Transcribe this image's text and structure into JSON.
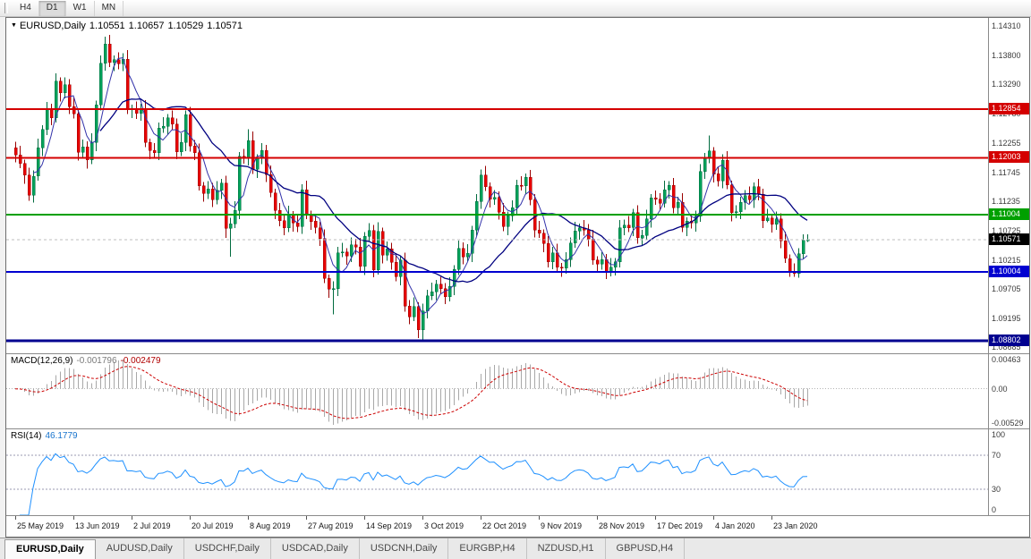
{
  "toolbar": {
    "timeframes": [
      "H4",
      "D1",
      "W1",
      "MN"
    ],
    "active_timeframe": "D1"
  },
  "icons": {
    "dropdown_icon": "▼"
  },
  "tabs": {
    "active_index": 0,
    "items": [
      "EURUSD,Daily",
      "AUDUSD,Daily",
      "USDCHF,Daily",
      "USDCAD,Daily",
      "USDCNH,Daily",
      "EURGBP,H4",
      "NZDUSD,H1",
      "GBPUSD,H4"
    ]
  },
  "chart_data": {
    "type": "candlestick",
    "symbol": "EURUSD",
    "period": "Daily",
    "header": {
      "symbol_period": "EURUSD,Daily",
      "open": "1.10551",
      "high": "1.10657",
      "low": "1.10529",
      "close": "1.10571"
    },
    "ylim": [
      1.0858,
      1.1445
    ],
    "y_ticks": [
      "1.14310",
      "1.13800",
      "1.13290",
      "1.12780",
      "1.12255",
      "1.11745",
      "1.11235",
      "1.10725",
      "1.10215",
      "1.09705",
      "1.09195",
      "1.08685"
    ],
    "x_labels": [
      "25 May 2019",
      "13 Jun 2019",
      "2 Jul 2019",
      "20 Jul 2019",
      "8 Aug 2019",
      "27 Aug 2019",
      "14 Sep 2019",
      "3 Oct 2019",
      "22 Oct 2019",
      "9 Nov 2019",
      "28 Nov 2019",
      "17 Dec 2019",
      "4 Jan 2020",
      "23 Jan 2020"
    ],
    "levels": [
      {
        "value": 1.12854,
        "label": "1.12854",
        "color": "#d40000",
        "width": 2
      },
      {
        "value": 1.12003,
        "label": "1.12003",
        "color": "#d40000",
        "width": 2
      },
      {
        "value": 1.11004,
        "label": "1.11004",
        "color": "#00a000",
        "width": 2
      },
      {
        "value": 1.10004,
        "label": "1.10004",
        "color": "#0000d0",
        "width": 2
      },
      {
        "value": 1.08802,
        "label": "1.08802",
        "color": "#000090",
        "width": 3
      }
    ],
    "current_price": {
      "value": 1.10571,
      "label": "1.10571",
      "color": "#000000"
    },
    "colors": {
      "up_fill": "#00a25a",
      "up_stroke": "#006b3f",
      "down_fill": "#e80000",
      "down_stroke": "#9a0000",
      "ma_fast": "#3333aa",
      "ma_slow": "#000080",
      "bid_line": "#bdbdbd",
      "macd_hist": "#a8a8a8",
      "macd_signal": "#cc0000",
      "rsi_line": "#1e90ff",
      "rsi_level": "#9a9ab0",
      "axis_text": "#3a3a3a"
    },
    "indicators": [
      {
        "name": "MACD",
        "label": "MACD(12,26,9)",
        "main_value": "-0.001796",
        "signal_value": "-0.002479",
        "y_ticks": [
          "0.00463",
          "0.00",
          "-0.00529"
        ],
        "ylim": [
          -0.00529,
          0.00463
        ]
      },
      {
        "name": "RSI",
        "label": "RSI(14)",
        "value": "46.1779",
        "y_ticks": [
          "100",
          "70",
          "30",
          "0"
        ],
        "levels": [
          70,
          30
        ],
        "ylim": [
          0,
          100
        ]
      }
    ],
    "candles": [
      [
        1.1218,
        1.1228,
        1.1192,
        1.1205
      ],
      [
        1.1205,
        1.1221,
        1.1182,
        1.119
      ],
      [
        1.119,
        1.1197,
        1.1155,
        1.117
      ],
      [
        1.117,
        1.1183,
        1.1125,
        1.1135
      ],
      [
        1.1135,
        1.1178,
        1.1122,
        1.1168
      ],
      [
        1.1168,
        1.1234,
        1.116,
        1.1218
      ],
      [
        1.1218,
        1.1257,
        1.1203,
        1.125
      ],
      [
        1.125,
        1.1298,
        1.124,
        1.1285
      ],
      [
        1.1285,
        1.1295,
        1.1257,
        1.127
      ],
      [
        1.127,
        1.1348,
        1.1262,
        1.1334
      ],
      [
        1.1334,
        1.1341,
        1.1299,
        1.1314
      ],
      [
        1.1314,
        1.1341,
        1.1304,
        1.1328
      ],
      [
        1.1328,
        1.1338,
        1.1277,
        1.129
      ],
      [
        1.129,
        1.1306,
        1.1269,
        1.1277
      ],
      [
        1.1277,
        1.1284,
        1.1195,
        1.121
      ],
      [
        1.121,
        1.1232,
        1.12,
        1.1219
      ],
      [
        1.1219,
        1.1229,
        1.1181,
        1.1197
      ],
      [
        1.1197,
        1.1243,
        1.1189,
        1.1227
      ],
      [
        1.1227,
        1.13,
        1.1212,
        1.1293
      ],
      [
        1.1293,
        1.1379,
        1.1283,
        1.1366
      ],
      [
        1.1366,
        1.1412,
        1.1353,
        1.1399
      ],
      [
        1.1399,
        1.1415,
        1.1359,
        1.1367
      ],
      [
        1.1367,
        1.1379,
        1.1352,
        1.1372
      ],
      [
        1.1372,
        1.1385,
        1.1355,
        1.1365
      ],
      [
        1.1365,
        1.1383,
        1.1352,
        1.1373
      ],
      [
        1.1373,
        1.1389,
        1.1277,
        1.1285
      ],
      [
        1.1285,
        1.1293,
        1.127,
        1.1286
      ],
      [
        1.1286,
        1.1299,
        1.1268,
        1.1278
      ],
      [
        1.1278,
        1.1295,
        1.1265,
        1.1285
      ],
      [
        1.1285,
        1.1301,
        1.1219,
        1.1227
      ],
      [
        1.1227,
        1.1234,
        1.1198,
        1.1213
      ],
      [
        1.1213,
        1.1226,
        1.1199,
        1.1209
      ],
      [
        1.1209,
        1.1262,
        1.1196,
        1.1252
      ],
      [
        1.1252,
        1.1271,
        1.1244,
        1.1255
      ],
      [
        1.1255,
        1.1277,
        1.124,
        1.127
      ],
      [
        1.127,
        1.1283,
        1.1249,
        1.1259
      ],
      [
        1.1259,
        1.1269,
        1.1198,
        1.1211
      ],
      [
        1.1211,
        1.1243,
        1.1203,
        1.1227
      ],
      [
        1.1227,
        1.1283,
        1.1212,
        1.1276
      ],
      [
        1.1276,
        1.1289,
        1.1211,
        1.1221
      ],
      [
        1.1221,
        1.1231,
        1.1196,
        1.1209
      ],
      [
        1.1209,
        1.1225,
        1.1143,
        1.1151
      ],
      [
        1.1151,
        1.1158,
        1.1123,
        1.1138
      ],
      [
        1.1138,
        1.1159,
        1.1128,
        1.1146
      ],
      [
        1.1146,
        1.1156,
        1.1114,
        1.1127
      ],
      [
        1.1127,
        1.1159,
        1.1119,
        1.1143
      ],
      [
        1.1143,
        1.1163,
        1.1128,
        1.1156
      ],
      [
        1.1156,
        1.1169,
        1.106,
        1.1077
      ],
      [
        1.1077,
        1.1095,
        1.1027,
        1.1085
      ],
      [
        1.1085,
        1.1124,
        1.1077,
        1.1108
      ],
      [
        1.1108,
        1.121,
        1.1093,
        1.1203
      ],
      [
        1.1203,
        1.1216,
        1.119,
        1.12
      ],
      [
        1.12,
        1.125,
        1.1187,
        1.123
      ],
      [
        1.123,
        1.1246,
        1.1172,
        1.118
      ],
      [
        1.118,
        1.1206,
        1.1165,
        1.1199
      ],
      [
        1.1199,
        1.1226,
        1.1189,
        1.1213
      ],
      [
        1.1213,
        1.1223,
        1.1158,
        1.1171
      ],
      [
        1.1171,
        1.1187,
        1.1131,
        1.1139
      ],
      [
        1.1139,
        1.1146,
        1.1093,
        1.1108
      ],
      [
        1.1108,
        1.1121,
        1.108,
        1.109
      ],
      [
        1.109,
        1.11,
        1.1065,
        1.1078
      ],
      [
        1.1078,
        1.1116,
        1.107,
        1.11
      ],
      [
        1.11,
        1.1107,
        1.1071,
        1.1086
      ],
      [
        1.1086,
        1.1099,
        1.107,
        1.108
      ],
      [
        1.108,
        1.1154,
        1.1067,
        1.1144
      ],
      [
        1.1144,
        1.116,
        1.1093,
        1.1101
      ],
      [
        1.1101,
        1.1108,
        1.1074,
        1.1089
      ],
      [
        1.1089,
        1.1102,
        1.1068,
        1.1078
      ],
      [
        1.1078,
        1.1088,
        1.1046,
        1.1059
      ],
      [
        1.1059,
        1.1075,
        1.0981,
        1.0989
      ],
      [
        1.0989,
        1.0996,
        1.0955,
        1.097
      ],
      [
        1.097,
        1.0984,
        1.0926,
        1.0971
      ],
      [
        1.0971,
        1.1044,
        1.0958,
        1.1034
      ],
      [
        1.1034,
        1.1051,
        1.1026,
        1.1035
      ],
      [
        1.1035,
        1.1042,
        1.1013,
        1.1028
      ],
      [
        1.1028,
        1.1061,
        1.1018,
        1.1048
      ],
      [
        1.1048,
        1.1058,
        1.1031,
        1.1044
      ],
      [
        1.1044,
        1.106,
        1.1002,
        1.101
      ],
      [
        1.101,
        1.107,
        1.0995,
        1.1063
      ],
      [
        1.1063,
        1.1086,
        1.1053,
        1.1073
      ],
      [
        1.1073,
        1.1083,
        1.0991,
        1.1004
      ],
      [
        1.1004,
        1.1087,
        1.0996,
        1.1071
      ],
      [
        1.1071,
        1.1078,
        1.1015,
        1.103
      ],
      [
        1.103,
        1.1054,
        1.102,
        1.1041
      ],
      [
        1.1041,
        1.1051,
        1.1004,
        1.1017
      ],
      [
        1.1017,
        1.1033,
        1.0984,
        1.0992
      ],
      [
        1.0992,
        1.1028,
        1.0977,
        1.1021
      ],
      [
        1.1021,
        1.1034,
        1.0931,
        1.0941
      ],
      [
        1.0941,
        1.0951,
        1.0909,
        1.0922
      ],
      [
        1.0922,
        1.0956,
        1.0914,
        1.094
      ],
      [
        1.094,
        1.0947,
        1.0885,
        1.0899
      ],
      [
        1.0899,
        1.0945,
        1.0879,
        1.0932
      ],
      [
        1.0932,
        1.0969,
        1.0919,
        1.0959
      ],
      [
        1.0959,
        1.0982,
        1.0951,
        1.0966
      ],
      [
        1.0966,
        1.0986,
        1.0951,
        1.0979
      ],
      [
        1.0979,
        1.0992,
        1.0961,
        1.0971
      ],
      [
        1.0971,
        1.0981,
        1.0944,
        1.0957
      ],
      [
        1.0957,
        1.0991,
        1.0949,
        1.0975
      ],
      [
        1.0975,
        1.1012,
        1.096,
        1.1005
      ],
      [
        1.1005,
        1.1055,
        1.0995,
        1.1042
      ],
      [
        1.1042,
        1.1052,
        1.1014,
        1.1027
      ],
      [
        1.1027,
        1.1049,
        1.1019,
        1.1033
      ],
      [
        1.1033,
        1.1081,
        1.1018,
        1.1074
      ],
      [
        1.1074,
        1.1137,
        1.1064,
        1.1124
      ],
      [
        1.1124,
        1.118,
        1.1111,
        1.117
      ],
      [
        1.117,
        1.1186,
        1.1142,
        1.115
      ],
      [
        1.115,
        1.1157,
        1.1113,
        1.1128
      ],
      [
        1.1128,
        1.1144,
        1.1118,
        1.1131
      ],
      [
        1.1131,
        1.1141,
        1.1092,
        1.1105
      ],
      [
        1.1105,
        1.1121,
        1.1072,
        1.108
      ],
      [
        1.108,
        1.1106,
        1.1065,
        1.1099
      ],
      [
        1.1099,
        1.1126,
        1.1089,
        1.1113
      ],
      [
        1.1113,
        1.1162,
        1.11,
        1.1152
      ],
      [
        1.1152,
        1.1168,
        1.1143,
        1.1151
      ],
      [
        1.1151,
        1.1173,
        1.1136,
        1.1166
      ],
      [
        1.1166,
        1.1179,
        1.1117,
        1.1127
      ],
      [
        1.1127,
        1.1137,
        1.1061,
        1.1074
      ],
      [
        1.1074,
        1.109,
        1.106,
        1.1068
      ],
      [
        1.1068,
        1.1075,
        1.1035,
        1.105
      ],
      [
        1.105,
        1.1063,
        1.1008,
        1.1018
      ],
      [
        1.1018,
        1.1044,
        1.1005,
        1.1034
      ],
      [
        1.1034,
        1.105,
        1.1001,
        1.1009
      ],
      [
        1.1009,
        1.1016,
        1.0992,
        1.1007
      ],
      [
        1.1007,
        1.1035,
        1.0997,
        1.1022
      ],
      [
        1.1022,
        1.1061,
        1.1009,
        1.1051
      ],
      [
        1.1051,
        1.1088,
        1.1043,
        1.1072
      ],
      [
        1.1072,
        1.1085,
        1.1057,
        1.1078
      ],
      [
        1.1078,
        1.1091,
        1.1064,
        1.1074
      ],
      [
        1.1074,
        1.1084,
        1.1045,
        1.1058
      ],
      [
        1.1058,
        1.1074,
        1.1013,
        1.1021
      ],
      [
        1.1021,
        1.1028,
        1.0999,
        1.1014
      ],
      [
        1.1014,
        1.1035,
        1.1004,
        1.1022
      ],
      [
        1.1022,
        1.1032,
        1.0988,
        1.1001
      ],
      [
        1.1001,
        1.1025,
        1.0993,
        1.1009
      ],
      [
        1.1009,
        1.1025,
        1.0994,
        1.1018
      ],
      [
        1.1018,
        1.1091,
        1.1008,
        1.1078
      ],
      [
        1.1078,
        1.1092,
        1.1065,
        1.1082
      ],
      [
        1.1082,
        1.1098,
        1.107,
        1.1078
      ],
      [
        1.1078,
        1.1111,
        1.1063,
        1.1104
      ],
      [
        1.1104,
        1.1117,
        1.105,
        1.106
      ],
      [
        1.106,
        1.1074,
        1.1047,
        1.1064
      ],
      [
        1.1064,
        1.1109,
        1.1056,
        1.1093
      ],
      [
        1.1093,
        1.1137,
        1.1078,
        1.113
      ],
      [
        1.113,
        1.1143,
        1.1118,
        1.1128
      ],
      [
        1.1128,
        1.1138,
        1.1108,
        1.1121
      ],
      [
        1.1121,
        1.116,
        1.1113,
        1.1144
      ],
      [
        1.1144,
        1.1159,
        1.1129,
        1.1152
      ],
      [
        1.1152,
        1.1165,
        1.1103,
        1.1113
      ],
      [
        1.1113,
        1.1132,
        1.11,
        1.1122
      ],
      [
        1.1122,
        1.1138,
        1.107,
        1.1078
      ],
      [
        1.1078,
        1.1096,
        1.1063,
        1.1089
      ],
      [
        1.1089,
        1.1102,
        1.1076,
        1.1086
      ],
      [
        1.1086,
        1.1108,
        1.1071,
        1.1098
      ],
      [
        1.1098,
        1.1189,
        1.1088,
        1.1176
      ],
      [
        1.1176,
        1.1209,
        1.1163,
        1.1199
      ],
      [
        1.1199,
        1.1239,
        1.1191,
        1.1212
      ],
      [
        1.1212,
        1.1219,
        1.1157,
        1.1172
      ],
      [
        1.1172,
        1.1185,
        1.115,
        1.116
      ],
      [
        1.116,
        1.1206,
        1.1147,
        1.1196
      ],
      [
        1.1196,
        1.1212,
        1.1145,
        1.1153
      ],
      [
        1.1153,
        1.116,
        1.1089,
        1.1104
      ],
      [
        1.1104,
        1.1117,
        1.1094,
        1.1106
      ],
      [
        1.1106,
        1.1132,
        1.1093,
        1.1122
      ],
      [
        1.1122,
        1.1144,
        1.1109,
        1.1134
      ],
      [
        1.1134,
        1.115,
        1.1119,
        1.1127
      ],
      [
        1.1127,
        1.1157,
        1.1112,
        1.115
      ],
      [
        1.115,
        1.1163,
        1.1126,
        1.1136
      ],
      [
        1.1136,
        1.1146,
        1.1077,
        1.109
      ],
      [
        1.109,
        1.1111,
        1.1087,
        1.1095
      ],
      [
        1.1095,
        1.1102,
        1.1069,
        1.1084
      ],
      [
        1.1084,
        1.1106,
        1.1074,
        1.1093
      ],
      [
        1.1093,
        1.1103,
        1.1042,
        1.1055
      ],
      [
        1.1055,
        1.1071,
        1.1016,
        1.1024
      ],
      [
        1.1024,
        1.1031,
        1.0992,
        1.1002
      ],
      [
        1.1002,
        1.1015,
        1.0992,
        1.0998
      ],
      [
        1.0998,
        1.1042,
        1.099,
        1.1032
      ],
      [
        1.1032,
        1.1066,
        1.1024,
        1.1056
      ],
      [
        1.1055,
        1.1066,
        1.1053,
        1.1057
      ]
    ]
  }
}
